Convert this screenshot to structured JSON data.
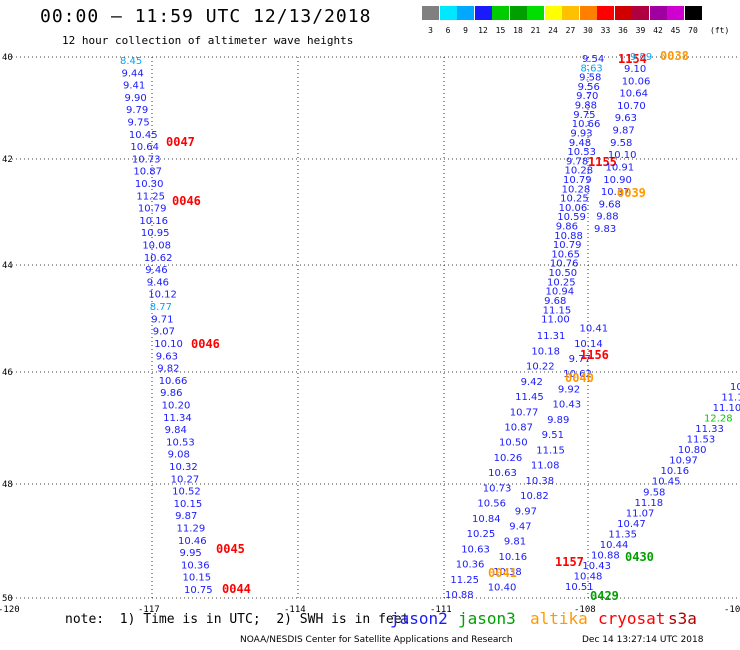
{
  "header": {
    "title": "00:00 – 11:59 UTC 12/13/2018",
    "subtitle": "12 hour collection of altimeter wave heights"
  },
  "scale": {
    "unit": "(ft)",
    "bins": [
      {
        "label": "3",
        "color": "#808080"
      },
      {
        "label": "6",
        "color": "#00e8ff"
      },
      {
        "label": "9",
        "color": "#00a8ff"
      },
      {
        "label": "12",
        "color": "#1a1aff"
      },
      {
        "label": "15",
        "color": "#00cc00"
      },
      {
        "label": "18",
        "color": "#00a000"
      },
      {
        "label": "21",
        "color": "#00e000"
      },
      {
        "label": "24",
        "color": "#ffff00"
      },
      {
        "label": "27",
        "color": "#ffc000"
      },
      {
        "label": "30",
        "color": "#ff8000"
      },
      {
        "label": "33",
        "color": "#ff0000"
      },
      {
        "label": "36",
        "color": "#d00000"
      },
      {
        "label": "39",
        "color": "#b00040"
      },
      {
        "label": "42",
        "color": "#a000a0"
      },
      {
        "label": "45",
        "color": "#d000d0"
      },
      {
        "label": "70",
        "color": "#000000"
      }
    ]
  },
  "axes": {
    "lat_labels": [
      "40",
      "42",
      "44",
      "46",
      "48",
      "50"
    ],
    "lon_labels": [
      "-120",
      "-117",
      "-114",
      "-111",
      "-108",
      "-10"
    ]
  },
  "colors": {
    "wave_text": "#1a1aff",
    "time_label": "#ff0000",
    "grid": "#000000"
  },
  "track_a": {
    "values": [
      "8.45",
      "9.44",
      "9.41",
      "9.90",
      "9.79",
      "9.75",
      "10.45",
      "10.64",
      "10.73",
      "10.87",
      "10.30",
      "11.25",
      "10.79",
      "10.16",
      "10.95",
      "10.08",
      "10.62",
      "9.46",
      "9.46",
      "10.12",
      "8.77",
      "9.71",
      "9.07",
      "10.10",
      "9.63",
      "9.82",
      "10.66",
      "9.86",
      "10.20",
      "11.34",
      "9.84",
      "10.53",
      "9.08",
      "10.32",
      "10.27",
      "10.52",
      "10.15",
      "9.87",
      "11.29",
      "10.46",
      "9.95",
      "10.36",
      "10.15",
      "10.75"
    ],
    "times": [
      "0047",
      "0046",
      "0046",
      "0045",
      "0044"
    ]
  },
  "track_b": {
    "values": [
      "9.54",
      "8.63",
      "9.58",
      "9.56",
      "9.70",
      "9.88",
      "9.75",
      "10.66",
      "9.93",
      "9.48",
      "10.53",
      "9.78",
      "10.28",
      "10.79",
      "10.28",
      "10.25",
      "10.06",
      "10.59",
      "9.86",
      "10.88",
      "10.79",
      "10.65",
      "10.76",
      "10.50",
      "10.25",
      "10.94",
      "9.68",
      "11.15",
      "11.00",
      "10.41",
      "11.31",
      "10.14",
      "10.18",
      "9.77",
      "10.22",
      "10.62",
      "9.42",
      "9.92",
      "11.45",
      "10.43",
      "10.77",
      "9.89",
      "10.87",
      "9.51",
      "10.50",
      "11.15",
      "10.26",
      "11.08",
      "10.63",
      "10.38",
      "10.73",
      "10.82",
      "10.56",
      "9.97",
      "10.84",
      "9.47",
      "10.25",
      "9.81",
      "10.63",
      "10.16",
      "10.36",
      "10.38",
      "11.25",
      "10.40",
      "10.88"
    ],
    "times": [
      "1154",
      "1155",
      "1156",
      "1157"
    ],
    "times_b": [
      "0040",
      "0041"
    ]
  },
  "track_c": {
    "values": [
      "9.10",
      "10.06",
      "10.64",
      "10.70",
      "9.63",
      "9.87",
      "9.58",
      "10.10",
      "10.91",
      "10.90",
      "10.37",
      "9.68",
      "9.88",
      "9.83"
    ],
    "times": [
      "0038",
      "0039"
    ]
  },
  "track_d": {
    "values": [
      "10.",
      "11.1",
      "11.10",
      "12.28",
      "11.33",
      "11.53",
      "10.80",
      "10.97",
      "10.16",
      "10.45",
      "9.58",
      "11.18",
      "11.07",
      "10.47",
      "11.35",
      "10.44",
      "10.88",
      "10.43",
      "10.48",
      "10.51"
    ],
    "times": [
      "0430",
      "0429"
    ]
  },
  "note": "note:  1) Time is in UTC;  2) SWH is in feet",
  "legend": [
    {
      "label": "jason2",
      "color": "#1a1aff"
    },
    {
      "label": "jason3",
      "color": "#00a000"
    },
    {
      "label": "altika",
      "color": "#ff9900"
    },
    {
      "label": "cryosat",
      "color": "#ff0000"
    },
    {
      "label": "s3a",
      "color": "#b00000"
    }
  ],
  "footer": "NOAA/NESDIS Center for Satellite Applications and Research",
  "stamp": "Dec 14 13:27:14 UTC 2018"
}
